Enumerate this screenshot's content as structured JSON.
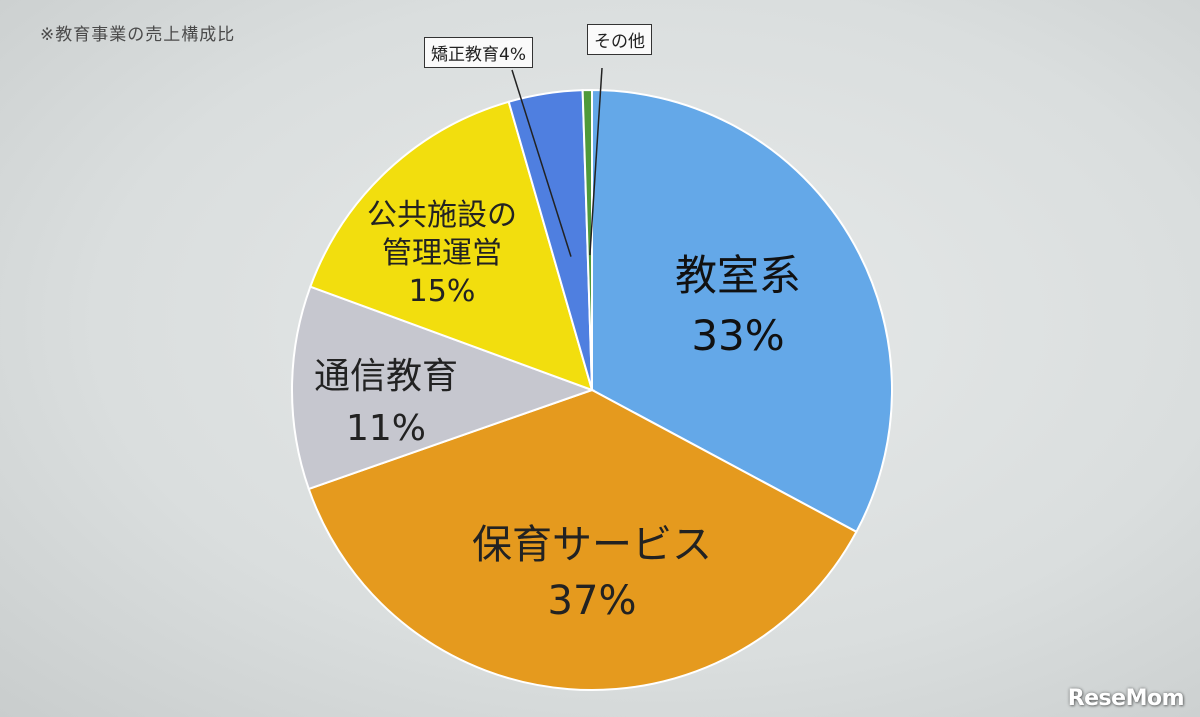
{
  "note": "※教育事業の売上構成比",
  "watermark": "ReseMom",
  "chart_data": {
    "type": "pie",
    "title": "",
    "start_angle_deg": 0,
    "direction": "clockwise",
    "slices": [
      {
        "name": "教室系",
        "value": 33,
        "label": "33%",
        "color": "#64a8e8",
        "text_color": "#111111"
      },
      {
        "name": "保育サービス",
        "value": 37,
        "label": "37%",
        "color": "#e59a1e",
        "text_color": "#222222"
      },
      {
        "name": "通信教育",
        "value": 11,
        "label": "11%",
        "color": "#c6c7cf",
        "text_color": "#222222"
      },
      {
        "name": "公共施設の管理運営",
        "value": 15,
        "label": "15%",
        "color": "#f2de0e",
        "text_color": "#222222"
      },
      {
        "name": "矯正教育",
        "value": 4,
        "label": "4%",
        "color": "#4f7fe0",
        "text_color": "#222222"
      },
      {
        "name": "その他",
        "value": 0.5,
        "label": "",
        "color": "#4f9a3a",
        "text_color": "#222222"
      }
    ],
    "callouts": {
      "kyosei": "矯正教育4%",
      "other": "その他"
    }
  }
}
